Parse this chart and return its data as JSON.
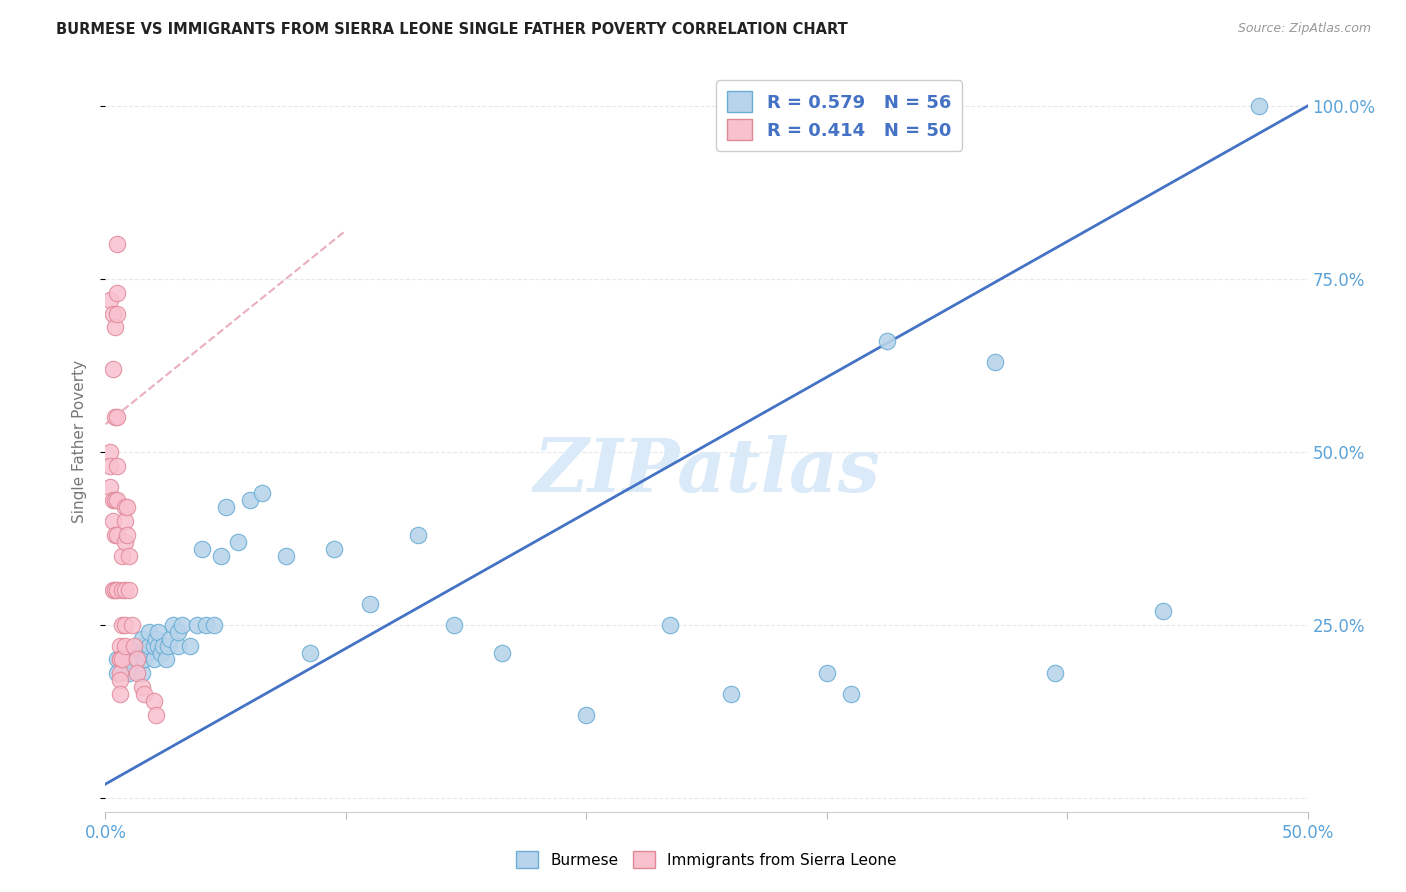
{
  "title": "BURMESE VS IMMIGRANTS FROM SIERRA LEONE SINGLE FATHER POVERTY CORRELATION CHART",
  "source": "Source: ZipAtlas.com",
  "ylabel": "Single Father Poverty",
  "xlim": [
    0.0,
    0.5
  ],
  "ylim": [
    -0.02,
    1.05
  ],
  "yticks": [
    0.0,
    0.25,
    0.5,
    0.75,
    1.0
  ],
  "xticks": [
    0.0,
    0.1,
    0.2,
    0.3,
    0.4,
    0.5
  ],
  "burmese_R": 0.579,
  "burmese_N": 56,
  "sierra_leone_R": 0.414,
  "sierra_leone_N": 50,
  "burmese_scatter_color": "#b8d4ea",
  "burmese_edge_color": "#6aaed6",
  "sierra_scatter_color": "#f9c0ce",
  "sierra_edge_color": "#e08898",
  "burmese_line_color": "#4472c4",
  "sierra_line_color": "#e8a0b0",
  "watermark_text": "ZIPatlas",
  "watermark_color": "#daeaf8",
  "legend_text_color": "#4472c4",
  "axis_tick_color": "#5ba3d9",
  "grid_color": "#e8e8e8",
  "title_color": "#222222",
  "ylabel_color": "#777777",
  "burmese_x": [
    0.005,
    0.005,
    0.01,
    0.01,
    0.01,
    0.012,
    0.013,
    0.014,
    0.015,
    0.015,
    0.015,
    0.016,
    0.017,
    0.018,
    0.018,
    0.02,
    0.02,
    0.021,
    0.022,
    0.022,
    0.023,
    0.024,
    0.025,
    0.026,
    0.027,
    0.028,
    0.03,
    0.03,
    0.032,
    0.035,
    0.038,
    0.04,
    0.042,
    0.045,
    0.048,
    0.05,
    0.055,
    0.06,
    0.065,
    0.075,
    0.085,
    0.095,
    0.11,
    0.13,
    0.145,
    0.165,
    0.2,
    0.235,
    0.26,
    0.3,
    0.325,
    0.37,
    0.395,
    0.31,
    0.48,
    0.44
  ],
  "burmese_y": [
    0.2,
    0.18,
    0.18,
    0.2,
    0.21,
    0.19,
    0.2,
    0.22,
    0.18,
    0.21,
    0.23,
    0.2,
    0.21,
    0.22,
    0.24,
    0.2,
    0.22,
    0.23,
    0.22,
    0.24,
    0.21,
    0.22,
    0.2,
    0.22,
    0.23,
    0.25,
    0.22,
    0.24,
    0.25,
    0.22,
    0.25,
    0.36,
    0.25,
    0.25,
    0.35,
    0.42,
    0.37,
    0.43,
    0.44,
    0.35,
    0.21,
    0.36,
    0.28,
    0.38,
    0.25,
    0.21,
    0.12,
    0.25,
    0.15,
    0.18,
    0.66,
    0.63,
    0.18,
    0.15,
    1.0,
    0.27
  ],
  "sierra_leone_x": [
    0.002,
    0.002,
    0.002,
    0.002,
    0.003,
    0.003,
    0.003,
    0.003,
    0.003,
    0.004,
    0.004,
    0.004,
    0.004,
    0.004,
    0.005,
    0.005,
    0.005,
    0.005,
    0.005,
    0.005,
    0.005,
    0.005,
    0.006,
    0.006,
    0.006,
    0.006,
    0.006,
    0.006,
    0.007,
    0.007,
    0.007,
    0.007,
    0.008,
    0.008,
    0.008,
    0.008,
    0.008,
    0.008,
    0.009,
    0.009,
    0.01,
    0.01,
    0.011,
    0.012,
    0.013,
    0.013,
    0.015,
    0.016,
    0.02,
    0.021
  ],
  "sierra_leone_y": [
    0.72,
    0.5,
    0.48,
    0.45,
    0.7,
    0.62,
    0.43,
    0.4,
    0.3,
    0.68,
    0.55,
    0.43,
    0.38,
    0.3,
    0.8,
    0.73,
    0.7,
    0.55,
    0.48,
    0.43,
    0.38,
    0.3,
    0.22,
    0.2,
    0.2,
    0.18,
    0.17,
    0.15,
    0.35,
    0.3,
    0.25,
    0.2,
    0.42,
    0.4,
    0.37,
    0.3,
    0.25,
    0.22,
    0.42,
    0.38,
    0.35,
    0.3,
    0.25,
    0.22,
    0.2,
    0.18,
    0.16,
    0.15,
    0.14,
    0.12
  ],
  "burmese_line_x0": 0.0,
  "burmese_line_y0": 0.02,
  "burmese_line_x1": 0.5,
  "burmese_line_y1": 1.0,
  "sierra_line_x0": 0.0,
  "sierra_line_y0": 0.54,
  "sierra_line_x1": 0.1,
  "sierra_line_y1": 0.82
}
